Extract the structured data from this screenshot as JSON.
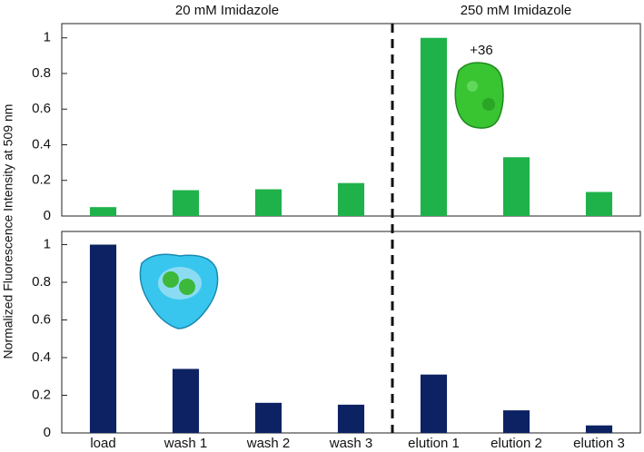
{
  "y_label": "Normalized Fluorescence Intensity at 509 nm",
  "headers": [
    "20 mM Imidazole",
    "250 mM Imidazole"
  ],
  "chart_data": [
    {
      "type": "bar",
      "color": "#1fb24a",
      "annotation": "+36",
      "values": [
        0.05,
        0.145,
        0.15,
        0.185,
        1.0,
        0.33,
        0.135
      ],
      "ylim": [
        0,
        1.08
      ],
      "yticks": [
        0,
        0.2,
        0.4,
        0.6,
        0.8,
        1
      ]
    },
    {
      "type": "bar",
      "color": "#0c2262",
      "categories": [
        "load",
        "wash 1",
        "wash 2",
        "wash 3",
        "elution 1",
        "elution 2",
        "elution 3"
      ],
      "values": [
        1.0,
        0.34,
        0.16,
        0.15,
        0.31,
        0.12,
        0.04
      ],
      "ylim": [
        0,
        1.07
      ],
      "yticks": [
        0,
        0.2,
        0.4,
        0.6,
        0.8,
        1
      ]
    }
  ]
}
